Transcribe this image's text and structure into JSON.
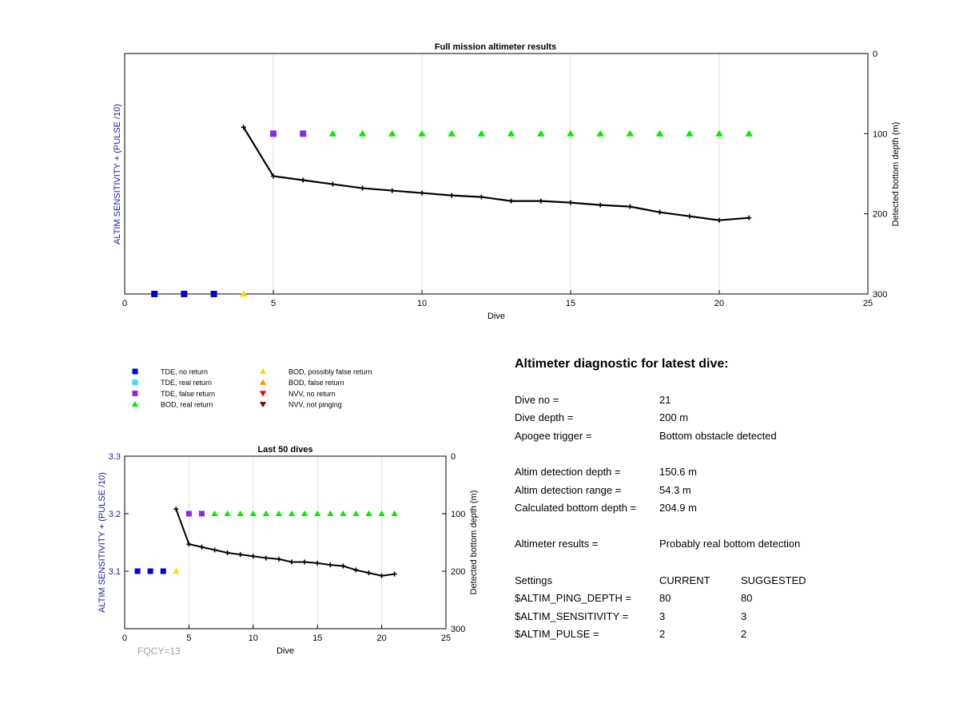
{
  "chart_data": [
    {
      "type": "line",
      "title": "Full mission altimeter results",
      "xlabel": "Dive",
      "ylabel_left": "ALTIM SENSITIVITY + (PULSE /10)",
      "ylabel_right": "Detected bottom depth (m)",
      "xlim": [
        0,
        25
      ],
      "xticks": [
        0,
        5,
        10,
        15,
        20,
        25
      ],
      "ylim_right": [
        0,
        300
      ],
      "yticks_right": [
        0,
        100,
        200,
        300
      ],
      "right_axis_reversed": true,
      "grid_x": true,
      "bottom_depth": {
        "x": [
          4,
          5,
          6,
          7,
          8,
          9,
          10,
          11,
          12,
          13,
          14,
          15,
          16,
          17,
          18,
          19,
          20,
          21
        ],
        "y": [
          92,
          153,
          158,
          163,
          168,
          171,
          174,
          177,
          179,
          184,
          184,
          186,
          189,
          191,
          198,
          203,
          208,
          205
        ]
      },
      "markers": [
        {
          "dive": 1,
          "depth": 300,
          "type": "tde_no_return"
        },
        {
          "dive": 2,
          "depth": 300,
          "type": "tde_no_return"
        },
        {
          "dive": 3,
          "depth": 300,
          "type": "tde_no_return"
        },
        {
          "dive": 4,
          "depth": 300,
          "type": "bod_possibly_false"
        },
        {
          "dive": 5,
          "depth": 100,
          "type": "tde_false_return"
        },
        {
          "dive": 6,
          "depth": 100,
          "type": "tde_false_return"
        },
        {
          "dive": 7,
          "depth": 100,
          "type": "bod_real_return"
        },
        {
          "dive": 8,
          "depth": 100,
          "type": "bod_real_return"
        },
        {
          "dive": 9,
          "depth": 100,
          "type": "bod_real_return"
        },
        {
          "dive": 10,
          "depth": 100,
          "type": "bod_real_return"
        },
        {
          "dive": 11,
          "depth": 100,
          "type": "bod_real_return"
        },
        {
          "dive": 12,
          "depth": 100,
          "type": "bod_real_return"
        },
        {
          "dive": 13,
          "depth": 100,
          "type": "bod_real_return"
        },
        {
          "dive": 14,
          "depth": 100,
          "type": "bod_real_return"
        },
        {
          "dive": 15,
          "depth": 100,
          "type": "bod_real_return"
        },
        {
          "dive": 16,
          "depth": 100,
          "type": "bod_real_return"
        },
        {
          "dive": 17,
          "depth": 100,
          "type": "bod_real_return"
        },
        {
          "dive": 18,
          "depth": 100,
          "type": "bod_real_return"
        },
        {
          "dive": 19,
          "depth": 100,
          "type": "bod_real_return"
        },
        {
          "dive": 20,
          "depth": 100,
          "type": "bod_real_return"
        },
        {
          "dive": 21,
          "depth": 100,
          "type": "bod_real_return"
        }
      ]
    },
    {
      "type": "line",
      "title": "Last 50 dives",
      "xlabel": "Dive",
      "ylabel_left": "ALTIM SENSITIVITY + (PULSE /10)",
      "ylabel_right": "Detected bottom depth (m)",
      "xlim": [
        0,
        25
      ],
      "xticks": [
        0,
        5,
        10,
        15,
        20,
        25
      ],
      "ylim_left": [
        3.0,
        3.3
      ],
      "yticks_left": [
        "3.1",
        "3.2",
        "3.3"
      ],
      "ylim_right": [
        0,
        300
      ],
      "yticks_right": [
        0,
        100,
        200,
        300
      ],
      "right_axis_reversed": true,
      "grid_x": true,
      "annotation": "FQCY=13",
      "bottom_depth": {
        "x": [
          4,
          5,
          6,
          7,
          8,
          9,
          10,
          11,
          12,
          13,
          14,
          15,
          16,
          17,
          18,
          19,
          20,
          21
        ],
        "y": [
          92,
          153,
          158,
          163,
          168,
          171,
          174,
          177,
          179,
          184,
          184,
          186,
          189,
          191,
          198,
          203,
          208,
          205
        ]
      },
      "markers": [
        {
          "dive": 1,
          "depth": 200,
          "type": "tde_no_return"
        },
        {
          "dive": 2,
          "depth": 200,
          "type": "tde_no_return"
        },
        {
          "dive": 3,
          "depth": 200,
          "type": "tde_no_return"
        },
        {
          "dive": 4,
          "depth": 200,
          "type": "bod_possibly_false"
        },
        {
          "dive": 5,
          "depth": 100,
          "type": "tde_false_return"
        },
        {
          "dive": 6,
          "depth": 100,
          "type": "tde_false_return"
        },
        {
          "dive": 7,
          "depth": 100,
          "type": "bod_real_return"
        },
        {
          "dive": 8,
          "depth": 100,
          "type": "bod_real_return"
        },
        {
          "dive": 9,
          "depth": 100,
          "type": "bod_real_return"
        },
        {
          "dive": 10,
          "depth": 100,
          "type": "bod_real_return"
        },
        {
          "dive": 11,
          "depth": 100,
          "type": "bod_real_return"
        },
        {
          "dive": 12,
          "depth": 100,
          "type": "bod_real_return"
        },
        {
          "dive": 13,
          "depth": 100,
          "type": "bod_real_return"
        },
        {
          "dive": 14,
          "depth": 100,
          "type": "bod_real_return"
        },
        {
          "dive": 15,
          "depth": 100,
          "type": "bod_real_return"
        },
        {
          "dive": 16,
          "depth": 100,
          "type": "bod_real_return"
        },
        {
          "dive": 17,
          "depth": 100,
          "type": "bod_real_return"
        },
        {
          "dive": 18,
          "depth": 100,
          "type": "bod_real_return"
        },
        {
          "dive": 19,
          "depth": 100,
          "type": "bod_real_return"
        },
        {
          "dive": 20,
          "depth": 100,
          "type": "bod_real_return"
        },
        {
          "dive": 21,
          "depth": 100,
          "type": "bod_real_return"
        }
      ]
    }
  ],
  "marker_styles": {
    "tde_no_return": {
      "shape": "square",
      "color": "#0000d8"
    },
    "tde_real_return": {
      "shape": "square",
      "color": "#33e0f0"
    },
    "tde_false_return": {
      "shape": "square",
      "color": "#8a2be2"
    },
    "bod_real_return": {
      "shape": "triangle-up",
      "color": "#00ee00"
    },
    "bod_possibly_false": {
      "shape": "triangle-up",
      "color": "#ffd700"
    },
    "bod_false_return": {
      "shape": "triangle-up",
      "color": "#ff9900"
    },
    "nvv_no_return": {
      "shape": "triangle-down",
      "color": "#ee0000"
    },
    "nvv_not_pinging": {
      "shape": "triangle-down",
      "color": "#8b0000"
    }
  },
  "legend": [
    {
      "key": "tde_no_return",
      "label": "TDE, no return"
    },
    {
      "key": "tde_real_return",
      "label": "TDE, real return"
    },
    {
      "key": "tde_false_return",
      "label": "TDE, false return"
    },
    {
      "key": "bod_real_return",
      "label": "BOD, real return"
    },
    {
      "key": "bod_possibly_false",
      "label": "BOD, possibly false return"
    },
    {
      "key": "bod_false_return",
      "label": "BOD, false return"
    },
    {
      "key": "nvv_no_return",
      "label": "NVV, no return"
    },
    {
      "key": "nvv_not_pinging",
      "label": "NVV, not pinging"
    }
  ],
  "colors": {
    "axis_label_blue": "#1a1aa6",
    "line": "#000000",
    "grid": "#e0e0e0",
    "annotation_gray": "#a0a0a0"
  },
  "diagnostic": {
    "title": "Altimeter diagnostic for latest dive:",
    "dive_no_label": "Dive no =",
    "dive_no": "21",
    "dive_depth_label": "Dive depth =",
    "dive_depth": "200 m",
    "apogee_label": "Apogee trigger =",
    "apogee": "Bottom obstacle detected",
    "altim_depth_label": "Altim detection depth =",
    "altim_depth": "150.6 m",
    "altim_range_label": "Altim detection range =",
    "altim_range": "54.3 m",
    "calc_depth_label": "Calculated bottom depth =",
    "calc_depth": "204.9 m",
    "results_label": "Altimeter results =",
    "results": "Probably real bottom detection",
    "settings_label": "Settings",
    "current_label": "CURRENT",
    "suggested_label": "SUGGESTED",
    "settings": [
      {
        "name": "$ALTIM_PING_DEPTH =",
        "current": "80",
        "suggested": "80"
      },
      {
        "name": "$ALTIM_SENSITIVITY =",
        "current": "3",
        "suggested": "3"
      },
      {
        "name": "$ALTIM_PULSE =",
        "current": "2",
        "suggested": "2"
      }
    ]
  }
}
